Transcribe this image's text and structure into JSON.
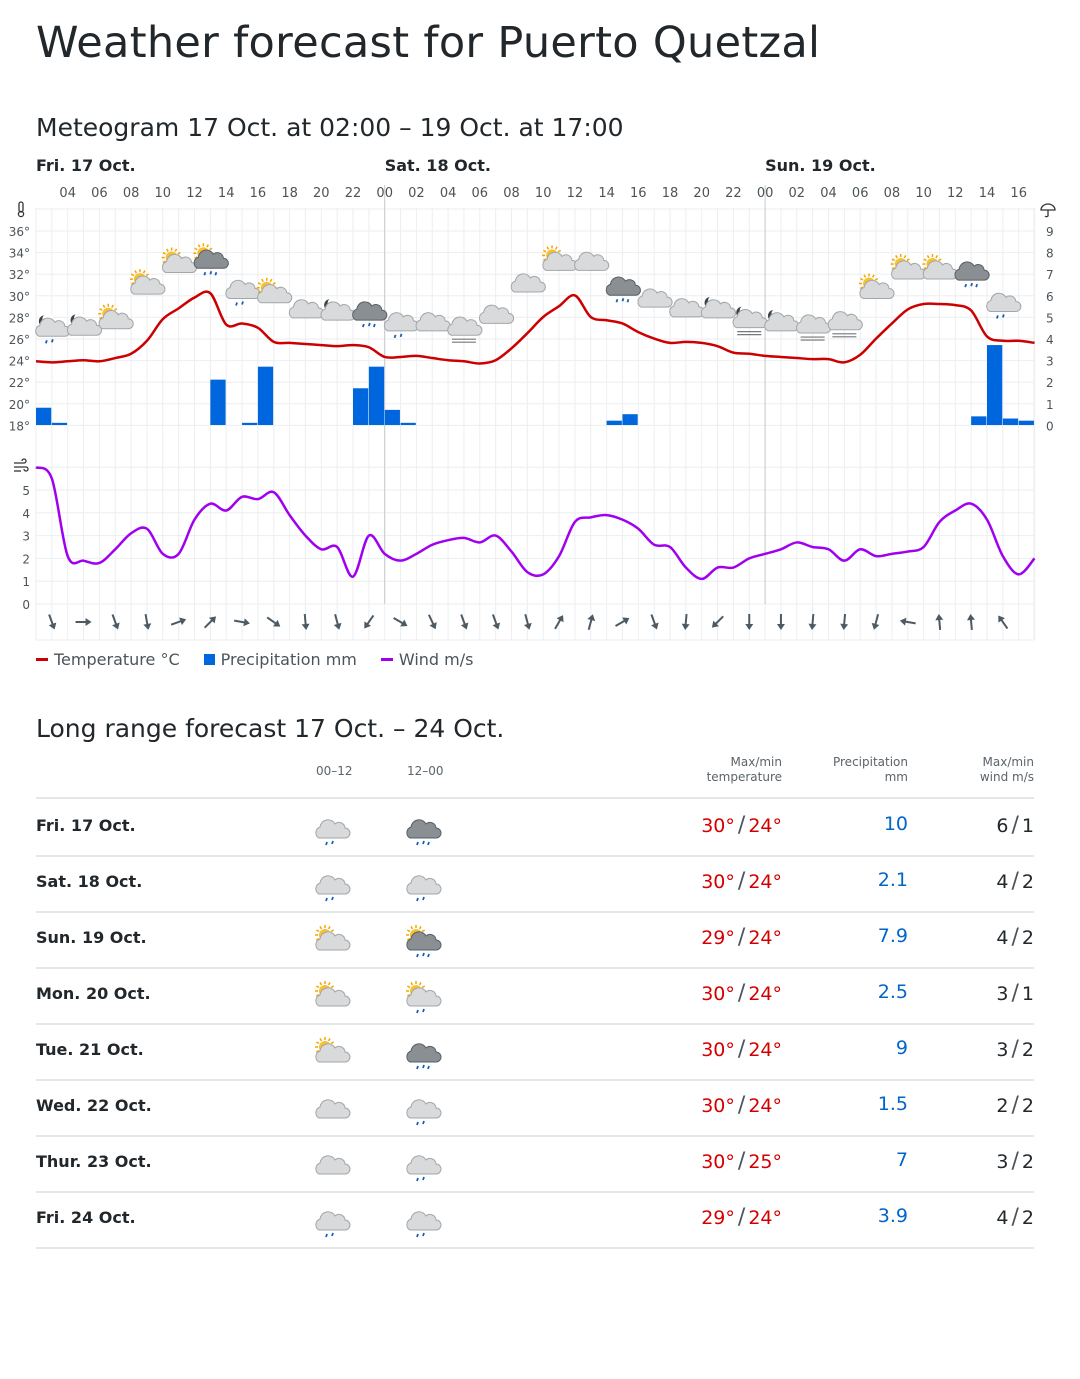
{
  "title": "Weather forecast for Puerto Quetzal",
  "meteogram": {
    "heading": "Meteogram 17 Oct. at 02:00 – 19 Oct. at 17:00",
    "days": [
      {
        "label": "Fri. 17 Oct.",
        "start_hour_index": 0
      },
      {
        "label": "Sat. 18 Oct.",
        "start_hour_index": 22
      },
      {
        "label": "Sun. 19 Oct.",
        "start_hour_index": 46
      }
    ],
    "hour_labels": [
      "04",
      "06",
      "08",
      "10",
      "12",
      "14",
      "16",
      "18",
      "20",
      "22",
      "00",
      "02",
      "04",
      "06",
      "08",
      "10",
      "12",
      "14",
      "16",
      "18",
      "20",
      "22",
      "00",
      "02",
      "04",
      "06",
      "08",
      "10",
      "12",
      "14",
      "16"
    ],
    "temp_ticks": [
      "36°",
      "34°",
      "32°",
      "30°",
      "28°",
      "26°",
      "24°",
      "22°",
      "20°",
      "18°"
    ],
    "precip_ticks": [
      "9",
      "8",
      "7",
      "6",
      "5",
      "4",
      "3",
      "2",
      "1",
      "0"
    ],
    "wind_ticks": [
      "5",
      "4",
      "3",
      "2",
      "1",
      "0"
    ],
    "legend": {
      "temperature": "Temperature °C",
      "precipitation": "Precipitation mm",
      "wind": "Wind m/s"
    },
    "colors": {
      "temperature": "#cc0000",
      "precipitation": "#0066dd",
      "wind": "#a000f0"
    }
  },
  "chart_data": {
    "type": "line",
    "x_start": "Fri 17 Oct 02:00",
    "x_step_hours": 1,
    "temperature_c": [
      23.9,
      23.8,
      23.9,
      24.0,
      23.9,
      24.2,
      24.6,
      25.8,
      27.8,
      28.8,
      29.8,
      30.2,
      27.3,
      27.4,
      27.0,
      25.7,
      25.6,
      25.5,
      25.4,
      25.3,
      25.4,
      25.2,
      24.3,
      24.3,
      24.4,
      24.2,
      24.0,
      23.9,
      23.7,
      24.0,
      25.1,
      26.5,
      28.0,
      29.0,
      30.0,
      28.0,
      27.7,
      27.4,
      26.6,
      26.0,
      25.6,
      25.7,
      25.6,
      25.3,
      24.7,
      24.6,
      24.4,
      24.3,
      24.2,
      24.1,
      24.1,
      23.8,
      24.5,
      26.0,
      27.4,
      28.7,
      29.2,
      29.2,
      29.1,
      28.6,
      26.2,
      25.8,
      25.8,
      25.6
    ],
    "temp_range": [
      18,
      36
    ],
    "precipitation_mm": {
      "0": 0.8,
      "1": 0.1,
      "11": 2.1,
      "13": 0.1,
      "14": 2.7,
      "20": 1.7,
      "21": 2.7,
      "22": 0.7,
      "23": 0.1,
      "36": 0.2,
      "37": 0.5,
      "59": 0.4,
      "60": 3.7,
      "61": 0.3,
      "62": 0.2
    },
    "precip_range": [
      0,
      9
    ],
    "wind_ms": [
      6.0,
      5.5,
      2.1,
      1.9,
      1.8,
      2.4,
      3.1,
      3.3,
      2.2,
      2.2,
      3.7,
      4.4,
      4.1,
      4.7,
      4.6,
      4.9,
      3.9,
      3.0,
      2.4,
      2.5,
      1.2,
      3.0,
      2.2,
      1.9,
      2.2,
      2.6,
      2.8,
      2.9,
      2.7,
      3.0,
      2.3,
      1.4,
      1.3,
      2.1,
      3.6,
      3.8,
      3.9,
      3.7,
      3.3,
      2.6,
      2.5,
      1.6,
      1.1,
      1.6,
      1.6,
      2.0,
      2.2,
      2.4,
      2.7,
      2.5,
      2.4,
      1.9,
      2.4,
      2.1,
      2.2,
      2.3,
      2.5,
      3.6,
      4.1,
      4.4,
      3.7,
      2.1,
      1.3,
      2.0
    ],
    "wind_range": [
      0,
      6
    ],
    "wind_direction_deg_every_2h": [
      70,
      0,
      70,
      80,
      -20,
      -45,
      10,
      35,
      85,
      75,
      125,
      30,
      65,
      70,
      70,
      75,
      -60,
      -75,
      -30,
      70,
      95,
      135,
      90,
      90,
      95,
      95,
      105,
      190,
      -95,
      -95,
      -125
    ],
    "weather_symbols_every_2h": [
      "moon cloud rain",
      "moon cloud",
      "sun cloud",
      "sun cloud",
      "sun cloud",
      "sun dark rain",
      "cloud rain",
      "sun cloud",
      "cloud",
      "moon cloud",
      "dark rain",
      "cloud rain",
      "cloud",
      "cloud fog",
      "cloud",
      "cloud",
      "sun cloud",
      "cloud",
      "dark rain",
      "cloud",
      "cloud",
      "moon cloud",
      "moon cloud fog",
      "moon cloud",
      "cloud fog",
      "cloud fog",
      "sun cloud",
      "sun cloud",
      "sun cloud",
      "dark rain",
      "cloud rain"
    ]
  },
  "long_range": {
    "heading": "Long range forecast 17 Oct. – 24 Oct.",
    "headers": {
      "p1": "00–12",
      "p2": "12–00",
      "temp1": "Max/min",
      "temp2": "temperature",
      "prec1": "Precipitation",
      "prec2": "mm",
      "wind1": "Max/min",
      "wind2": "wind m/s"
    },
    "rows": [
      {
        "day": "Fri. 17 Oct.",
        "icon1": "cloud rain",
        "icon2": "dark rain",
        "max": "30°",
        "min": "24°",
        "precip": "10",
        "wmax": "6",
        "wmin": "1"
      },
      {
        "day": "Sat. 18 Oct.",
        "icon1": "cloud rain",
        "icon2": "cloud rain",
        "max": "30°",
        "min": "24°",
        "precip": "2.1",
        "wmax": "4",
        "wmin": "2"
      },
      {
        "day": "Sun. 19 Oct.",
        "icon1": "sun cloud",
        "icon2": "sun dark rain",
        "max": "29°",
        "min": "24°",
        "precip": "7.9",
        "wmax": "4",
        "wmin": "2"
      },
      {
        "day": "Mon. 20 Oct.",
        "icon1": "sun cloud",
        "icon2": "sun cloud rain",
        "max": "30°",
        "min": "24°",
        "precip": "2.5",
        "wmax": "3",
        "wmin": "1"
      },
      {
        "day": "Tue. 21 Oct.",
        "icon1": "sun cloud",
        "icon2": "dark rain",
        "max": "30°",
        "min": "24°",
        "precip": "9",
        "wmax": "3",
        "wmin": "2"
      },
      {
        "day": "Wed. 22 Oct.",
        "icon1": "cloud",
        "icon2": "cloud rain",
        "max": "30°",
        "min": "24°",
        "precip": "1.5",
        "wmax": "2",
        "wmin": "2"
      },
      {
        "day": "Thur. 23 Oct.",
        "icon1": "cloud",
        "icon2": "cloud rain",
        "max": "30°",
        "min": "25°",
        "precip": "7",
        "wmax": "3",
        "wmin": "2"
      },
      {
        "day": "Fri. 24 Oct.",
        "icon1": "cloud rain",
        "icon2": "cloud rain",
        "max": "29°",
        "min": "24°",
        "precip": "3.9",
        "wmax": "4",
        "wmin": "2"
      }
    ]
  }
}
